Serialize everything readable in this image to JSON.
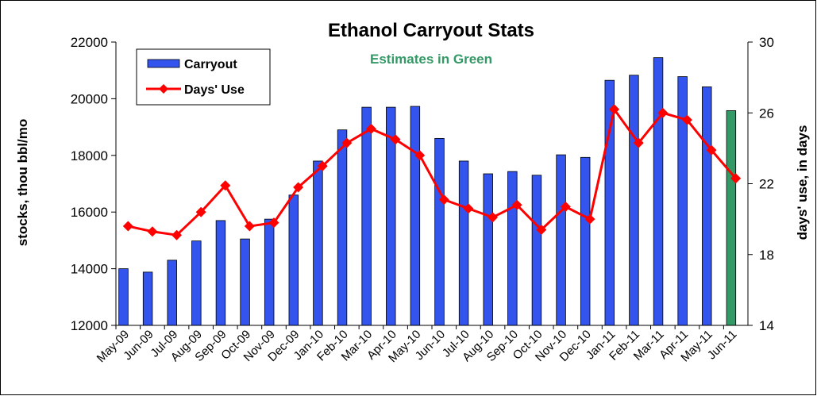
{
  "chart_data": {
    "type": "bar_line",
    "title": "Ethanol Carryout Stats",
    "subtitle": "Estimates in Green",
    "y_label": "stocks, thou bbl/mo",
    "y2_label": "days' use, in days",
    "categories": [
      "May-09",
      "Jun-09",
      "Jul-09",
      "Aug-09",
      "Sep-09",
      "Oct-09",
      "Nov-09",
      "Dec-09",
      "Jan-10",
      "Feb-10",
      "Mar-10",
      "Apr-10",
      "May-10",
      "Jun-10",
      "Jul-10",
      "Aug-10",
      "Sep-10",
      "Oct-10",
      "Nov-10",
      "Dec-10",
      "Jan-11",
      "Feb-11",
      "Mar-11",
      "Apr-11",
      "May-11",
      "Jun-11"
    ],
    "series": [
      {
        "name": "Carryout",
        "type": "bar",
        "color": "#3355ee",
        "colors": [
          "#3355ee",
          "#3355ee",
          "#3355ee",
          "#3355ee",
          "#3355ee",
          "#3355ee",
          "#3355ee",
          "#3355ee",
          "#3355ee",
          "#3355ee",
          "#3355ee",
          "#3355ee",
          "#3355ee",
          "#3355ee",
          "#3355ee",
          "#3355ee",
          "#3355ee",
          "#3355ee",
          "#3355ee",
          "#3355ee",
          "#3355ee",
          "#3355ee",
          "#3355ee",
          "#3355ee",
          "#3355ee",
          "#339966"
        ],
        "values": [
          14000,
          13880,
          14300,
          14980,
          15700,
          15050,
          15750,
          16600,
          17800,
          18900,
          19700,
          19700,
          19730,
          18600,
          17800,
          17350,
          17430,
          17300,
          18020,
          17930,
          20650,
          20830,
          21450,
          20780,
          20420,
          19580
        ]
      },
      {
        "name": "Days' Use",
        "type": "line",
        "axis": "y2",
        "color": "#ff0000",
        "values": [
          19.6,
          19.3,
          19.1,
          20.4,
          21.9,
          19.6,
          19.8,
          21.8,
          23.0,
          24.3,
          25.1,
          24.5,
          23.6,
          21.1,
          20.6,
          20.1,
          20.8,
          19.4,
          20.7,
          20.0,
          26.2,
          24.3,
          26.0,
          25.6,
          23.9,
          22.3
        ]
      }
    ],
    "ylim": [
      12000,
      22000
    ],
    "yticks": [
      12000,
      14000,
      16000,
      18000,
      20000,
      22000
    ],
    "y2lim": [
      14,
      30
    ],
    "y2ticks": [
      14,
      18,
      22,
      26,
      30
    ],
    "grid": false,
    "legend": "upper left"
  }
}
